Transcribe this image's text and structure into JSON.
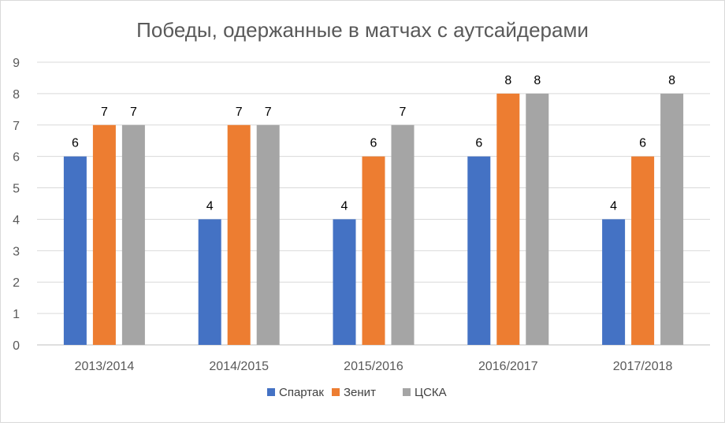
{
  "chart_data": {
    "type": "bar",
    "title": "Победы, одержанные в матчах с аутсайдерами",
    "xlabel": "",
    "ylabel": "",
    "categories": [
      "2013/2014",
      "2014/2015",
      "2015/2016",
      "2016/2017",
      "2017/2018"
    ],
    "series": [
      {
        "name": "Спартак",
        "color": "#4472C4",
        "values": [
          6,
          4,
          4,
          6,
          4
        ]
      },
      {
        "name": "Зенит",
        "color": "#ED7D31",
        "values": [
          7,
          7,
          6,
          8,
          6
        ]
      },
      {
        "name": "ЦСКА",
        "color": "#A5A5A5",
        "values": [
          7,
          7,
          7,
          8,
          8
        ]
      }
    ],
    "ylim": [
      0,
      9
    ],
    "yticks": [
      0,
      1,
      2,
      3,
      4,
      5,
      6,
      7,
      8,
      9
    ],
    "grid": true,
    "data_labels": true,
    "legend": "bottom"
  }
}
